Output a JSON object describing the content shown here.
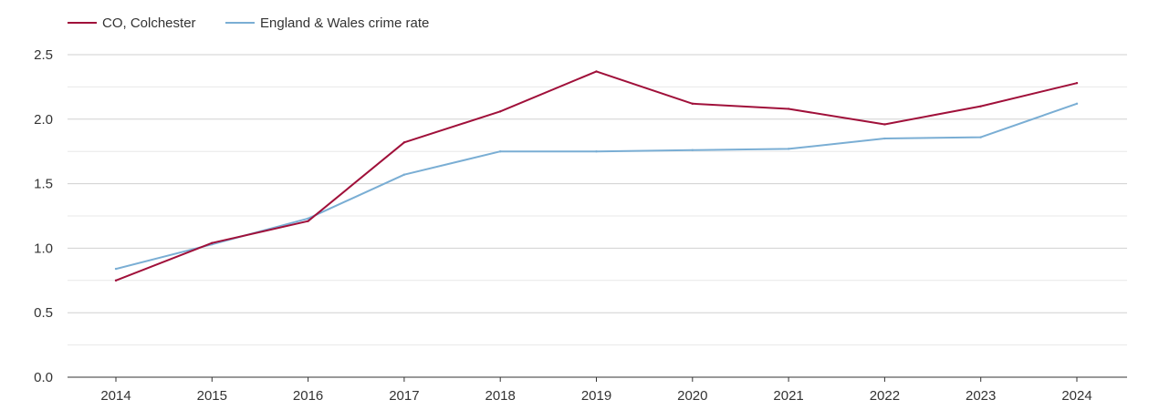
{
  "chart_data": {
    "type": "line",
    "title": "",
    "xlabel": "",
    "ylabel": "",
    "categories": [
      "2014",
      "2015",
      "2016",
      "2017",
      "2018",
      "2019",
      "2020",
      "2021",
      "2022",
      "2023",
      "2024"
    ],
    "ylim": [
      0,
      2.5
    ],
    "yticks": [
      "0.0",
      "0.5",
      "1.0",
      "1.5",
      "2.0",
      "2.5"
    ],
    "grid": true,
    "legend_position": "top-left",
    "series": [
      {
        "name": "CO, Colchester",
        "color": "#a0103a",
        "values": [
          0.75,
          1.04,
          1.21,
          1.82,
          2.06,
          2.37,
          2.12,
          2.08,
          1.96,
          2.1,
          2.28
        ]
      },
      {
        "name": "England & Wales crime rate",
        "color": "#7aaed4",
        "values": [
          0.84,
          1.03,
          1.23,
          1.57,
          1.75,
          1.75,
          1.76,
          1.77,
          1.85,
          1.86,
          2.12
        ]
      }
    ]
  }
}
